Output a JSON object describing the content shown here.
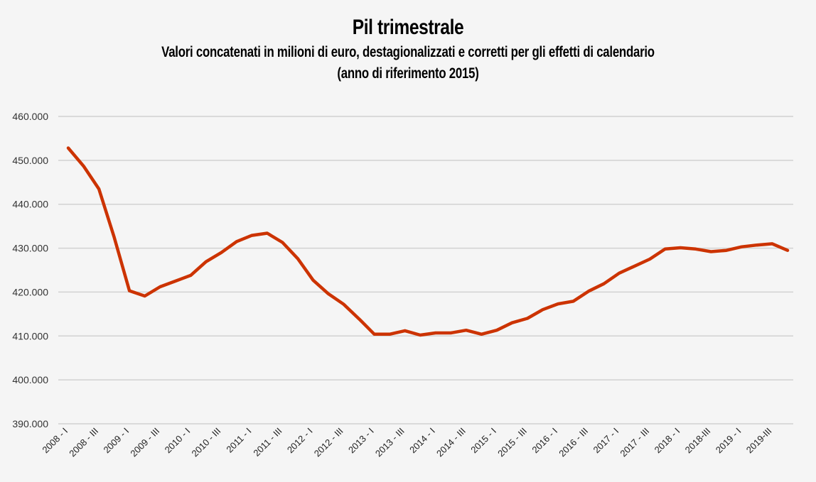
{
  "chart_data": {
    "type": "line",
    "title": "Pil trimestrale",
    "subtitle": "Valori concatenati in milioni di euro, destagionalizzati e corretti per gli effetti di calendario",
    "subtitle2": "(anno di riferimento 2015)",
    "xlabel": "",
    "ylabel": "",
    "ylim": [
      390000,
      460000
    ],
    "yticks": [
      390000,
      400000,
      410000,
      420000,
      430000,
      440000,
      450000,
      460000
    ],
    "ytick_labels": [
      "390.000",
      "400.000",
      "410.000",
      "420.000",
      "430.000",
      "440.000",
      "450.000",
      "460.000"
    ],
    "grid": true,
    "xtick_labels": [
      "2008 - I",
      "2008 - III",
      "2009 - I",
      "2009 - III",
      "2010 - I",
      "2010 - III",
      "2011 - I",
      "2011 - III",
      "2012 - I",
      "2012 - III",
      "2013 - I",
      "2013 - III",
      "2014 - I",
      "2014 - III",
      "2015 - I",
      "2015 - III",
      "2016 - I",
      "2016 - III",
      "2017 - I",
      "2017 - III",
      "2018 - I",
      "2018-III",
      "2019 - I",
      "2019-III"
    ],
    "series": [
      {
        "name": "Pil trimestrale",
        "color": "#cc3300",
        "values": [
          452800,
          448700,
          443500,
          432500,
          420300,
          419100,
          421200,
          422500,
          423800,
          426900,
          429000,
          431500,
          432900,
          433400,
          431300,
          427600,
          422700,
          419600,
          417200,
          413900,
          410400,
          410400,
          411200,
          410200,
          410700,
          410700,
          411300,
          410400,
          411300,
          413000,
          414000,
          416000,
          417300,
          417900,
          420200,
          421900,
          424300,
          425900,
          427500,
          429800,
          430100,
          429800,
          429200,
          429500,
          430300,
          430700,
          431000,
          429500
        ]
      }
    ]
  }
}
